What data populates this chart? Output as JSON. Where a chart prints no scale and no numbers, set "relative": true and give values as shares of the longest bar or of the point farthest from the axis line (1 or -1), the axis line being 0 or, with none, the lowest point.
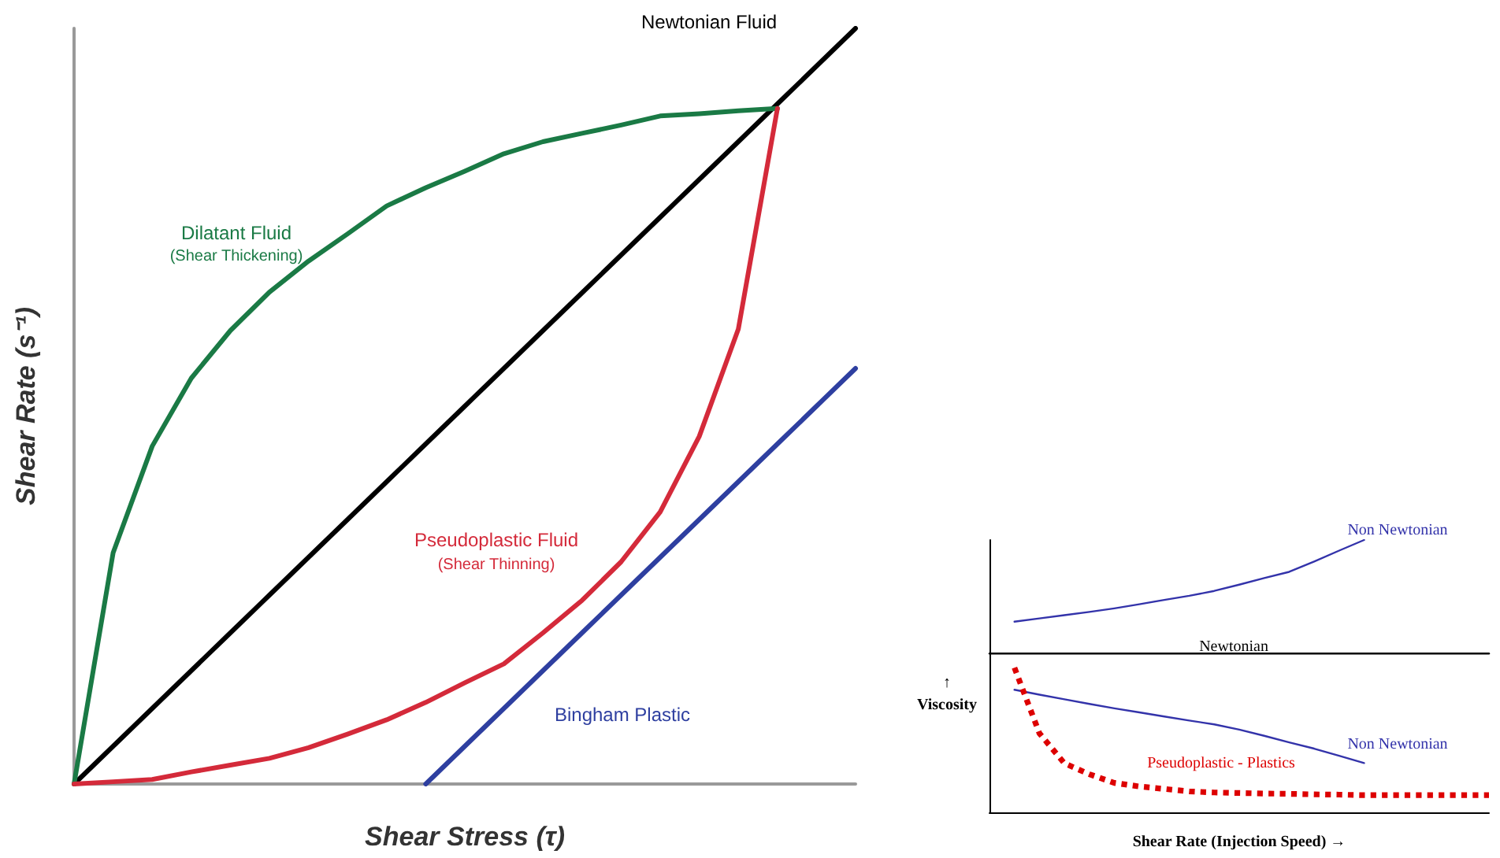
{
  "chart_data": [
    {
      "type": "line",
      "relative": true,
      "xlabel": "Shear Stress (τ)",
      "ylabel": "Shear Rate (s⁻¹)",
      "legend": false,
      "grid": false,
      "marker": "none",
      "annotations": [
        "(Shear Thickening)",
        "(Shear Thinning)"
      ],
      "categories": [
        null,
        null,
        null,
        null,
        null,
        null,
        null,
        null,
        null,
        null,
        null,
        null,
        null,
        null,
        null,
        null,
        null,
        null,
        null,
        null,
        null
      ],
      "series": [
        {
          "name": "Newtonian Fluid",
          "color": "#000000",
          "values": [
            0,
            0.05,
            0.1,
            0.15,
            0.2,
            0.25,
            0.3,
            0.35,
            0.4,
            0.45,
            0.5,
            0.55,
            0.6,
            0.65,
            0.7,
            0.75,
            0.8,
            0.85,
            0.9,
            0.95,
            1
          ]
        },
        {
          "name": "Dilatant Fluid",
          "color": "#1a7a45",
          "values": [
            0,
            0.306,
            0.447,
            0.537,
            0.6,
            0.651,
            0.692,
            0.728,
            0.765,
            0.789,
            0.811,
            0.834,
            0.85,
            0.861,
            0.872,
            0.884,
            0.887,
            0.891,
            0.894,
            null,
            null
          ]
        },
        {
          "name": "Pseudoplastic Fluid",
          "color": "#d42a3a",
          "values": [
            0,
            0.003,
            0.006,
            0.016,
            0.025,
            0.034,
            0.048,
            0.066,
            0.085,
            0.108,
            0.134,
            0.159,
            0.2,
            0.243,
            0.294,
            0.36,
            0.46,
            0.602,
            0.894,
            null,
            null
          ]
        },
        {
          "name": "Bingham Plastic",
          "color": "#2e3fa0",
          "values": [
            null,
            null,
            null,
            null,
            null,
            null,
            null,
            null,
            null,
            0,
            0.05,
            0.1,
            0.15,
            0.2,
            0.25,
            0.3,
            0.35,
            0.4,
            0.45,
            0.5,
            0.55
          ]
        }
      ]
    },
    {
      "type": "line",
      "relative": true,
      "xlabel": "Shear Rate (Injection Speed) →",
      "ylabel": "↑\nViscosity",
      "legend": false,
      "grid": false,
      "marker": "none",
      "categories": [
        null,
        null,
        null,
        null,
        null,
        null,
        null,
        null,
        null,
        null,
        null,
        null,
        null,
        null,
        null,
        null,
        null,
        null,
        null,
        null,
        null
      ],
      "series": [
        {
          "name": "Non Newtonian",
          "color": "#3333aa",
          "values": [
            null,
            0.7,
            0.712,
            0.724,
            0.736,
            0.749,
            0.764,
            0.78,
            0.795,
            0.813,
            0.836,
            0.86,
            0.883,
            0.921,
            0.961,
            1,
            null,
            null,
            null,
            null,
            null
          ]
        },
        {
          "name": "Newtonian",
          "color": "#000000",
          "values": [
            0.583,
            0.583,
            0.583,
            0.583,
            0.583,
            0.583,
            0.583,
            0.583,
            0.583,
            0.583,
            0.583,
            0.583,
            0.583,
            0.583,
            0.583,
            0.583,
            0.583,
            0.583,
            0.583,
            0.583,
            0.583
          ]
        },
        {
          "name": "Non Newtonian",
          "color": "#3333aa",
          "values": [
            null,
            0.45,
            0.432,
            0.415,
            0.398,
            0.382,
            0.367,
            0.352,
            0.337,
            0.323,
            0.304,
            0.281,
            0.257,
            0.234,
            0.208,
            0.181,
            null,
            null,
            null,
            null,
            null
          ]
        },
        {
          "name": "Pseudoplastic - Plastics",
          "color": "#dd0000",
          "line_style": "dotted",
          "values": [
            null,
            0.531,
            0.29,
            0.18,
            0.14,
            0.108,
            0.095,
            0.086,
            0.077,
            0.073,
            0.071,
            0.069,
            0.068,
            0.066,
            0.065,
            0.063,
            0.063,
            0.063,
            0.063,
            0.063,
            0.063
          ]
        }
      ]
    }
  ]
}
